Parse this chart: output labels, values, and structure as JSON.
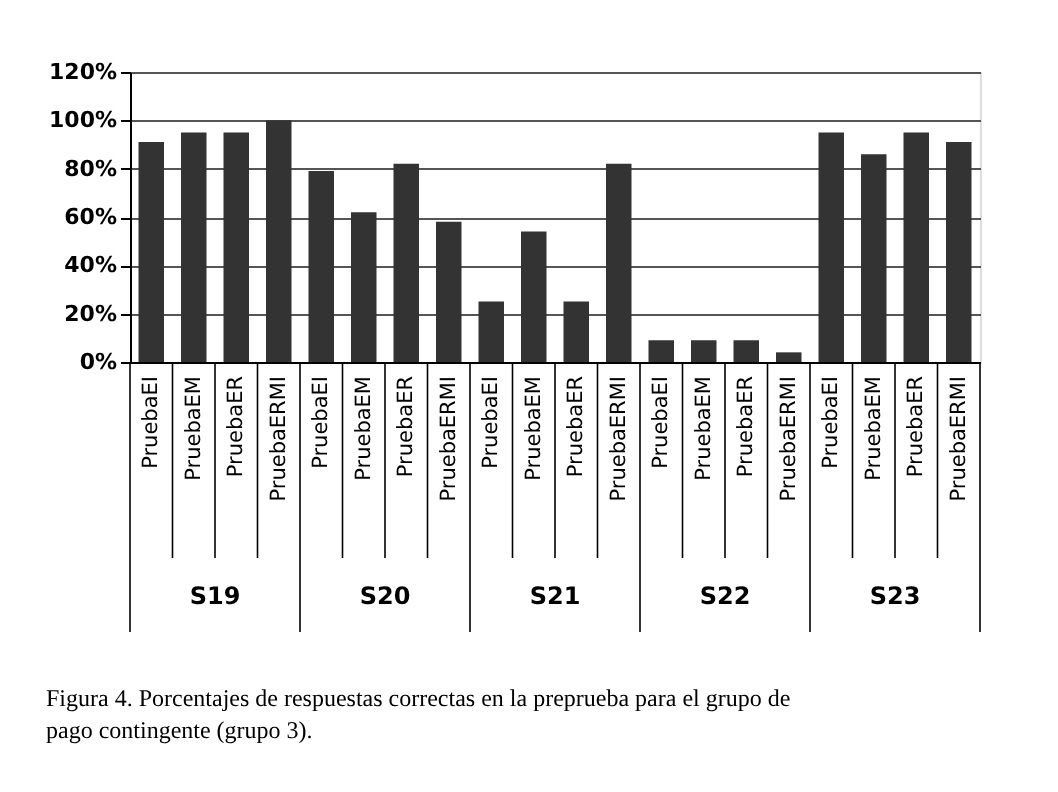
{
  "chart_data": {
    "type": "bar",
    "categories": [
      "PruebaEI",
      "PruebaEM",
      "PruebaER",
      "PruebaERMI",
      "PruebaEI",
      "PruebaEM",
      "PruebaER",
      "PruebaERMI",
      "PruebaEI",
      "PruebaEM",
      "PruebaER",
      "PruebaERMI",
      "PruebaEI",
      "PruebaEM",
      "PruebaER",
      "PruebaERMI",
      "PruebaEI",
      "PruebaEM",
      "PruebaER",
      "PruebaERMI"
    ],
    "values": [
      91,
      95,
      95,
      100,
      79,
      62,
      82,
      58,
      25,
      54,
      25,
      82,
      9,
      9,
      9,
      4,
      95,
      86,
      95,
      91
    ],
    "color": "#333333",
    "ylim": [
      0,
      120
    ],
    "yticks": [
      {
        "value": 0,
        "label": "0%"
      },
      {
        "value": 20,
        "label": "20%"
      },
      {
        "value": 40,
        "label": "40%"
      },
      {
        "value": 60,
        "label": "60%"
      },
      {
        "value": 80,
        "label": "80%"
      },
      {
        "value": 100,
        "label": "100%"
      },
      {
        "value": 120,
        "label": "120%"
      }
    ],
    "grid": "y",
    "annotations": [
      "S19",
      "S20",
      "S21",
      "S22",
      "S23",
      "Figura 4. Porcentajes de respuestas correctas en la preprueba para el grupo de pago contingente (grupo 3)."
    ]
  }
}
